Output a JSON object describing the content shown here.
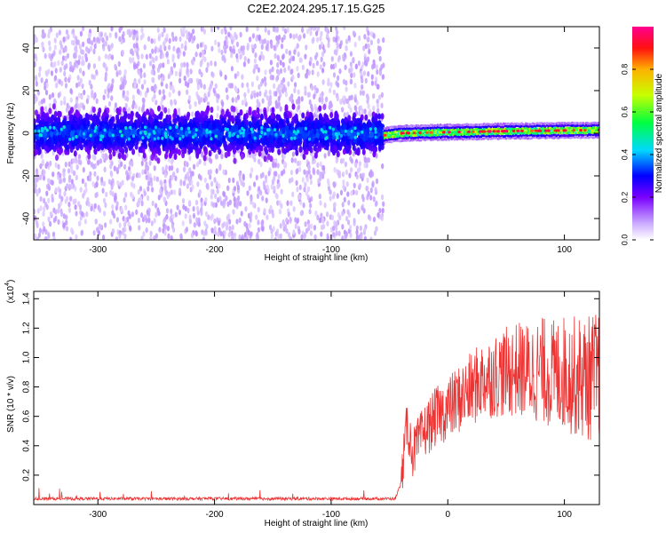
{
  "figure": {
    "title": "C2E2.2024.295.17.15.G25"
  },
  "chart_data": [
    {
      "type": "heatmap",
      "xlabel": "Height of straight line (km)",
      "ylabel": "Frequency (Hz)",
      "xlim": [
        -355,
        130
      ],
      "ylim": [
        -50,
        50
      ],
      "xticks": [
        -300,
        -200,
        -100,
        0,
        100
      ],
      "yticks": [
        -40,
        -20,
        0,
        20,
        40
      ],
      "colorbar": {
        "label": "Normalized spectral amplitude",
        "range": [
          0,
          1
        ],
        "ticks": [
          0.0,
          0.2,
          0.4,
          0.6,
          0.8
        ]
      },
      "regions": [
        {
          "x": [
            -355,
            -55
          ],
          "description_values": {
            "center_frequency": 0,
            "noise_band": [
              -50,
              50
            ],
            "core_band": [
              -10,
              10
            ],
            "amplitude": [
              0.05,
              0.3
            ]
          }
        },
        {
          "x": [
            -55,
            130
          ],
          "description_values": {
            "center_frequency_start": -1,
            "center_frequency_end": 1.5,
            "band_half_width": 3,
            "amplitude": [
              0.4,
              0.95
            ]
          }
        }
      ],
      "ridge": [
        {
          "x": -55,
          "y": -1
        },
        {
          "x": -40,
          "y": 0
        },
        {
          "x": 0,
          "y": 0.5
        },
        {
          "x": 50,
          "y": 1
        },
        {
          "x": 130,
          "y": 1.5
        }
      ]
    },
    {
      "type": "line",
      "xlabel": "Height of straight line (km)",
      "ylabel": "SNR (10 * v/v)",
      "scale_label": "(x10",
      "scale_exponent": "4",
      "xlim": [
        -355,
        130
      ],
      "ylim": [
        0,
        1.45
      ],
      "xticks": [
        -300,
        -200,
        -100,
        0,
        100
      ],
      "yticks": [
        0.2,
        0.4,
        0.6,
        0.8,
        1.0,
        1.2,
        1.4
      ],
      "color": "#ee3333",
      "series": [
        {
          "x": [
            -355,
            -300,
            -250,
            -200,
            -150,
            -100,
            -60,
            -45,
            -40,
            -35,
            -30,
            -20,
            -10,
            0,
            10,
            20,
            30,
            40,
            50,
            60,
            70,
            80,
            90,
            100,
            110,
            120,
            130
          ],
          "y": [
            0.04,
            0.04,
            0.04,
            0.04,
            0.04,
            0.04,
            0.04,
            0.04,
            0.15,
            0.55,
            0.35,
            0.5,
            0.6,
            0.65,
            0.72,
            0.78,
            0.85,
            0.88,
            0.9,
            0.92,
            0.9,
            0.92,
            0.88,
            0.9,
            0.87,
            0.86,
            0.88
          ]
        }
      ]
    }
  ]
}
